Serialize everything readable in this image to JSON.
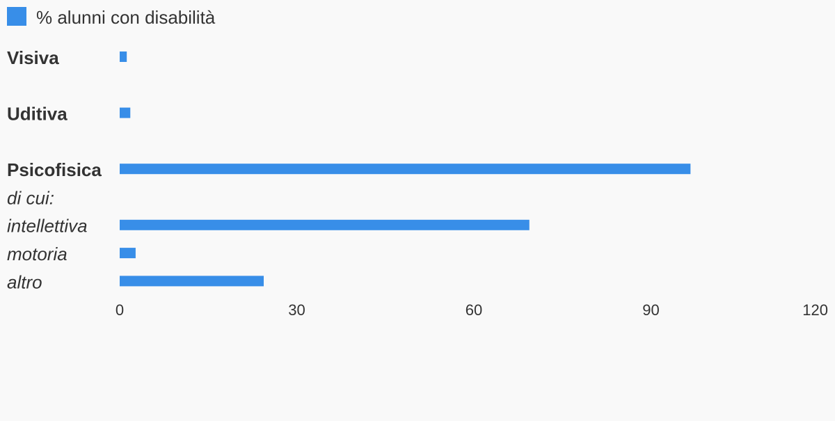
{
  "chart_data": {
    "type": "bar",
    "orientation": "horizontal",
    "legend": "% alunni con disabilità",
    "categories": [
      "Visiva",
      null,
      "Uditiva",
      null,
      "Psicofisica",
      "di cui:",
      "intellettiva",
      "motoria",
      "altro"
    ],
    "category_styles": [
      "bold",
      null,
      "bold",
      null,
      "bold",
      "italic",
      "italic",
      "italic",
      "italic"
    ],
    "series": [
      {
        "name": "% alunni con disabilità",
        "color": "#388ee8",
        "values": [
          1.2,
          null,
          1.8,
          null,
          96.7,
          null,
          69.4,
          2.7,
          24.4
        ]
      }
    ],
    "xlim": [
      0,
      120
    ],
    "xticks": [
      0,
      30,
      60,
      90,
      120
    ],
    "grid": false
  }
}
